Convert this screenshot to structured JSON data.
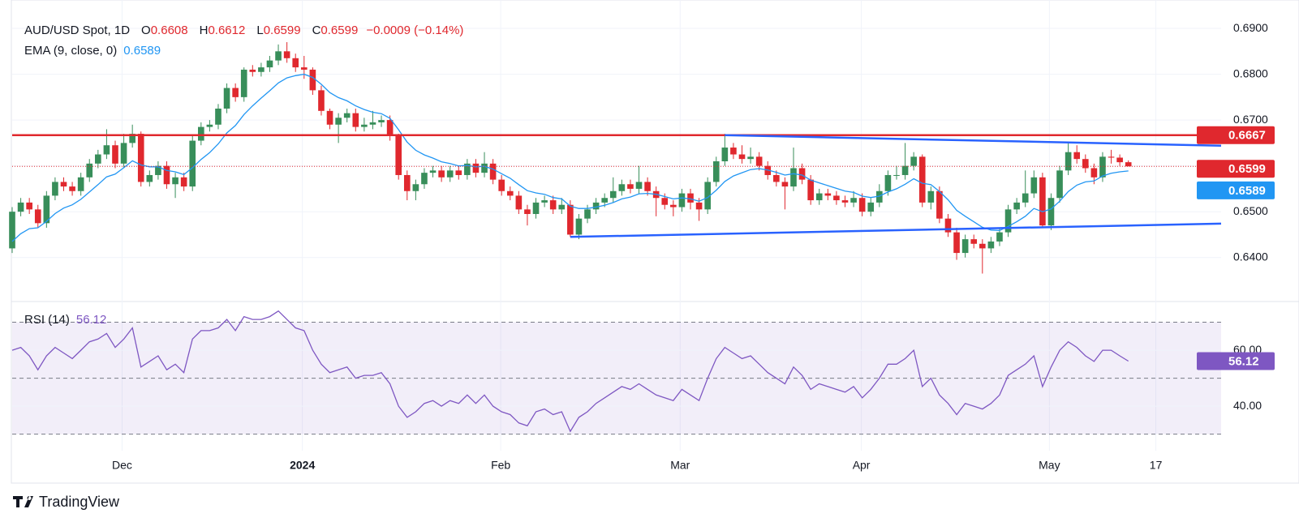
{
  "chart_data": {
    "type": "candlestick",
    "legend_text": {
      "symbol": "AUD/USD Spot, 1D",
      "fields": [
        {
          "label": "O",
          "value": "0.6608"
        },
        {
          "label": "H",
          "value": "0.6612"
        },
        {
          "label": "L",
          "value": "0.6599"
        },
        {
          "label": "C",
          "value": "0.6599"
        }
      ],
      "change": "−0.0009 (−0.14%)"
    },
    "up_color": "#388e5a",
    "down_color": "#e0282e",
    "ohlc": [
      [
        0.642,
        0.651,
        0.641,
        0.65
      ],
      [
        0.65,
        0.653,
        0.649,
        0.652
      ],
      [
        0.652,
        0.653,
        0.6495,
        0.6505
      ],
      [
        0.6505,
        0.6515,
        0.6465,
        0.6475
      ],
      [
        0.6475,
        0.6545,
        0.6465,
        0.6535
      ],
      [
        0.6535,
        0.6575,
        0.6525,
        0.6565
      ],
      [
        0.6565,
        0.6575,
        0.6545,
        0.6555
      ],
      [
        0.6555,
        0.6565,
        0.6535,
        0.6545
      ],
      [
        0.6545,
        0.6585,
        0.6535,
        0.6575
      ],
      [
        0.6575,
        0.6615,
        0.6565,
        0.6605
      ],
      [
        0.6605,
        0.6635,
        0.6595,
        0.6625
      ],
      [
        0.6625,
        0.668,
        0.6615,
        0.6645
      ],
      [
        0.6645,
        0.6655,
        0.6595,
        0.6605
      ],
      [
        0.6605,
        0.667,
        0.6595,
        0.665
      ],
      [
        0.665,
        0.669,
        0.664,
        0.667
      ],
      [
        0.667,
        0.6675,
        0.6555,
        0.6565
      ],
      [
        0.6565,
        0.659,
        0.6555,
        0.658
      ],
      [
        0.658,
        0.661,
        0.657,
        0.66
      ],
      [
        0.66,
        0.661,
        0.655,
        0.656
      ],
      [
        0.656,
        0.6585,
        0.653,
        0.6575
      ],
      [
        0.6575,
        0.6585,
        0.6545,
        0.6555
      ],
      [
        0.6555,
        0.6665,
        0.6545,
        0.6655
      ],
      [
        0.6655,
        0.6695,
        0.6645,
        0.6685
      ],
      [
        0.6685,
        0.67,
        0.6675,
        0.669
      ],
      [
        0.669,
        0.6735,
        0.668,
        0.6725
      ],
      [
        0.6725,
        0.678,
        0.6715,
        0.677
      ],
      [
        0.677,
        0.678,
        0.674,
        0.675
      ],
      [
        0.675,
        0.6815,
        0.674,
        0.681
      ],
      [
        0.681,
        0.682,
        0.6795,
        0.6805
      ],
      [
        0.6805,
        0.6825,
        0.6795,
        0.6815
      ],
      [
        0.6815,
        0.684,
        0.6805,
        0.683
      ],
      [
        0.683,
        0.6865,
        0.682,
        0.685
      ],
      [
        0.685,
        0.687,
        0.6825,
        0.6835
      ],
      [
        0.6835,
        0.6845,
        0.6805,
        0.6815
      ],
      [
        0.6815,
        0.684,
        0.679,
        0.681
      ],
      [
        0.681,
        0.6815,
        0.6755,
        0.6765
      ],
      [
        0.6765,
        0.6775,
        0.671,
        0.672
      ],
      [
        0.672,
        0.6725,
        0.668,
        0.669
      ],
      [
        0.669,
        0.6715,
        0.665,
        0.6705
      ],
      [
        0.6705,
        0.6725,
        0.6695,
        0.6715
      ],
      [
        0.6715,
        0.6725,
        0.6675,
        0.6685
      ],
      [
        0.6685,
        0.6705,
        0.6675,
        0.669
      ],
      [
        0.669,
        0.672,
        0.668,
        0.6695
      ],
      [
        0.6695,
        0.671,
        0.6685,
        0.67
      ],
      [
        0.67,
        0.671,
        0.6655,
        0.6665
      ],
      [
        0.6665,
        0.667,
        0.657,
        0.658
      ],
      [
        0.658,
        0.659,
        0.6525,
        0.6545
      ],
      [
        0.6545,
        0.657,
        0.6525,
        0.656
      ],
      [
        0.656,
        0.6595,
        0.655,
        0.6585
      ],
      [
        0.6585,
        0.66,
        0.6575,
        0.659
      ],
      [
        0.659,
        0.66,
        0.6565,
        0.6575
      ],
      [
        0.6575,
        0.66,
        0.6565,
        0.659
      ],
      [
        0.659,
        0.66,
        0.657,
        0.658
      ],
      [
        0.658,
        0.6615,
        0.657,
        0.6605
      ],
      [
        0.6605,
        0.6615,
        0.6575,
        0.6585
      ],
      [
        0.6585,
        0.663,
        0.6575,
        0.6605
      ],
      [
        0.6605,
        0.6615,
        0.656,
        0.657
      ],
      [
        0.657,
        0.658,
        0.6535,
        0.6545
      ],
      [
        0.6545,
        0.6555,
        0.6525,
        0.6535
      ],
      [
        0.6535,
        0.6545,
        0.6495,
        0.6505
      ],
      [
        0.6505,
        0.6515,
        0.647,
        0.6495
      ],
      [
        0.6495,
        0.653,
        0.6485,
        0.652
      ],
      [
        0.652,
        0.6535,
        0.651,
        0.6525
      ],
      [
        0.6525,
        0.6535,
        0.6495,
        0.6505
      ],
      [
        0.6505,
        0.653,
        0.6495,
        0.6515
      ],
      [
        0.6515,
        0.6525,
        0.6445,
        0.645
      ],
      [
        0.645,
        0.6495,
        0.644,
        0.6485
      ],
      [
        0.6485,
        0.6515,
        0.6475,
        0.6505
      ],
      [
        0.6505,
        0.653,
        0.6495,
        0.652
      ],
      [
        0.652,
        0.654,
        0.651,
        0.653
      ],
      [
        0.653,
        0.6575,
        0.652,
        0.6545
      ],
      [
        0.6545,
        0.657,
        0.6535,
        0.656
      ],
      [
        0.656,
        0.657,
        0.654,
        0.655
      ],
      [
        0.655,
        0.66,
        0.654,
        0.6565
      ],
      [
        0.6565,
        0.6575,
        0.6535,
        0.6545
      ],
      [
        0.6545,
        0.6555,
        0.649,
        0.653
      ],
      [
        0.653,
        0.654,
        0.6505,
        0.6515
      ],
      [
        0.6515,
        0.6525,
        0.649,
        0.651
      ],
      [
        0.651,
        0.655,
        0.65,
        0.654
      ],
      [
        0.654,
        0.655,
        0.6505,
        0.652
      ],
      [
        0.652,
        0.653,
        0.648,
        0.6505
      ],
      [
        0.6505,
        0.6575,
        0.6495,
        0.6565
      ],
      [
        0.6565,
        0.662,
        0.6555,
        0.661
      ],
      [
        0.661,
        0.667,
        0.66,
        0.664
      ],
      [
        0.664,
        0.665,
        0.6615,
        0.6625
      ],
      [
        0.6625,
        0.6645,
        0.6605,
        0.6615
      ],
      [
        0.6615,
        0.664,
        0.6605,
        0.662
      ],
      [
        0.662,
        0.663,
        0.659,
        0.66
      ],
      [
        0.66,
        0.661,
        0.657,
        0.658
      ],
      [
        0.658,
        0.659,
        0.6555,
        0.6565
      ],
      [
        0.6565,
        0.6575,
        0.6505,
        0.6555
      ],
      [
        0.6555,
        0.664,
        0.6545,
        0.6595
      ],
      [
        0.6595,
        0.6605,
        0.656,
        0.657
      ],
      [
        0.657,
        0.658,
        0.6515,
        0.6525
      ],
      [
        0.6525,
        0.655,
        0.6515,
        0.654
      ],
      [
        0.654,
        0.655,
        0.6525,
        0.6535
      ],
      [
        0.6535,
        0.6545,
        0.6515,
        0.6525
      ],
      [
        0.6525,
        0.6535,
        0.651,
        0.652
      ],
      [
        0.652,
        0.6545,
        0.651,
        0.653
      ],
      [
        0.653,
        0.654,
        0.649,
        0.65
      ],
      [
        0.65,
        0.653,
        0.649,
        0.652
      ],
      [
        0.652,
        0.656,
        0.651,
        0.6545
      ],
      [
        0.6545,
        0.659,
        0.6535,
        0.658
      ],
      [
        0.658,
        0.66,
        0.657,
        0.658
      ],
      [
        0.658,
        0.665,
        0.657,
        0.66
      ],
      [
        0.66,
        0.663,
        0.659,
        0.662
      ],
      [
        0.662,
        0.6625,
        0.651,
        0.652
      ],
      [
        0.652,
        0.6555,
        0.6505,
        0.6545
      ],
      [
        0.6545,
        0.6555,
        0.6475,
        0.6485
      ],
      [
        0.6485,
        0.6495,
        0.6445,
        0.6455
      ],
      [
        0.6455,
        0.6465,
        0.6395,
        0.641
      ],
      [
        0.641,
        0.645,
        0.64,
        0.644
      ],
      [
        0.644,
        0.645,
        0.642,
        0.643
      ],
      [
        0.643,
        0.644,
        0.6365,
        0.642
      ],
      [
        0.642,
        0.6445,
        0.641,
        0.6435
      ],
      [
        0.6435,
        0.6465,
        0.6425,
        0.6455
      ],
      [
        0.6455,
        0.6515,
        0.6445,
        0.6505
      ],
      [
        0.6505,
        0.653,
        0.6495,
        0.652
      ],
      [
        0.652,
        0.659,
        0.651,
        0.654
      ],
      [
        0.654,
        0.659,
        0.653,
        0.6575
      ],
      [
        0.6575,
        0.6585,
        0.6465,
        0.647
      ],
      [
        0.647,
        0.654,
        0.646,
        0.653
      ],
      [
        0.653,
        0.66,
        0.652,
        0.659
      ],
      [
        0.659,
        0.665,
        0.658,
        0.663
      ],
      [
        0.663,
        0.6645,
        0.6605,
        0.6615
      ],
      [
        0.6615,
        0.6625,
        0.6585,
        0.6595
      ],
      [
        0.6595,
        0.6605,
        0.656,
        0.6575
      ],
      [
        0.6575,
        0.663,
        0.6565,
        0.662
      ],
      [
        0.662,
        0.6635,
        0.6605,
        0.6618
      ],
      [
        0.6618,
        0.6625,
        0.66,
        0.6608
      ],
      [
        0.6608,
        0.6612,
        0.6599,
        0.6599
      ]
    ],
    "ema": {
      "name": "EMA (9, close, 0)",
      "color": "#2196f3",
      "values": [
        0.6435,
        0.6452,
        0.6463,
        0.6465,
        0.6479,
        0.6496,
        0.6508,
        0.6515,
        0.6527,
        0.6543,
        0.6559,
        0.6576,
        0.6582,
        0.6596,
        0.6611,
        0.6602,
        0.6598,
        0.6598,
        0.659,
        0.6587,
        0.6581,
        0.6596,
        0.6614,
        0.6629,
        0.6648,
        0.6672,
        0.6688,
        0.6712,
        0.6731,
        0.6748,
        0.6764,
        0.6781,
        0.6792,
        0.6797,
        0.68,
        0.6793,
        0.6778,
        0.676,
        0.6749,
        0.6742,
        0.6731,
        0.6723,
        0.6717,
        0.6714,
        0.6704,
        0.6679,
        0.6652,
        0.6634,
        0.6624,
        0.6617,
        0.6609,
        0.6605,
        0.66,
        0.6601,
        0.6598,
        0.6599,
        0.6593,
        0.6583,
        0.6573,
        0.6559,
        0.6546,
        0.6541,
        0.6538,
        0.6531,
        0.6528,
        0.6512,
        0.6507,
        0.6507,
        0.651,
        0.6514,
        0.652,
        0.6528,
        0.6532,
        0.6539,
        0.654,
        0.6538,
        0.6533,
        0.6528,
        0.653,
        0.6528,
        0.6523,
        0.6531,
        0.6547,
        0.6566,
        0.6578,
        0.6585,
        0.6592,
        0.6594,
        0.6591,
        0.6586,
        0.658,
        0.6583,
        0.658,
        0.6569,
        0.6563,
        0.6557,
        0.6551,
        0.6545,
        0.6542,
        0.6534,
        0.6531,
        0.6534,
        0.6543,
        0.655,
        0.656,
        0.6572,
        0.6562,
        0.6559,
        0.6544,
        0.6526,
        0.6503,
        0.649,
        0.6478,
        0.6466,
        0.646,
        0.6459,
        0.6468,
        0.6478,
        0.649,
        0.6507,
        0.65,
        0.6506,
        0.6523,
        0.6544,
        0.6558,
        0.6565,
        0.6567,
        0.6578,
        0.6584,
        0.6587,
        0.6589
      ]
    },
    "hline": {
      "value": 0.6667,
      "label": "0.6667",
      "color": "#e0282e"
    },
    "trendlines": [
      {
        "from": [
          83,
          0.6667
        ],
        "to": [
          140.8,
          0.6644
        ],
        "color": "#2962ff"
      },
      {
        "from": [
          65,
          0.6445
        ],
        "to": [
          140.8,
          0.6474
        ],
        "color": "#2962ff"
      }
    ],
    "xlim": [
      0,
      140.8
    ],
    "xticks": [
      {
        "value": 12.8,
        "label": "Dec"
      },
      {
        "value": 33.8,
        "label": "2024"
      },
      {
        "value": 56.9,
        "label": "Feb"
      },
      {
        "value": 77.8,
        "label": "Mar"
      },
      {
        "value": 98.9,
        "label": "Apr"
      },
      {
        "value": 120.8,
        "label": "May"
      },
      {
        "value": 133.2,
        "label": "17"
      }
    ],
    "ylim": [
      0.6304,
      0.6962
    ],
    "yticks": [
      {
        "value": 0.64,
        "label": "0.6400"
      },
      {
        "value": 0.65,
        "label": "0.6500"
      },
      {
        "value": 0.66,
        "label": "0.6600"
      },
      {
        "value": 0.67,
        "label": "0.6700"
      },
      {
        "value": 0.68,
        "label": "0.6800"
      },
      {
        "value": 0.69,
        "label": "0.6900"
      }
    ],
    "rsi": {
      "name": "RSI (14)",
      "color": "#7e57c2",
      "values": [
        60,
        61,
        58,
        53,
        58,
        61,
        59,
        57,
        60,
        63,
        64,
        66,
        61,
        64,
        68,
        54,
        56,
        58,
        53,
        55,
        52,
        64,
        67,
        67,
        68,
        71,
        67,
        72,
        71,
        71,
        72,
        74,
        71,
        68,
        67,
        60,
        55,
        52,
        53,
        54,
        50,
        51,
        51,
        52,
        48,
        40,
        36,
        38,
        41,
        42,
        40,
        42,
        41,
        44,
        41,
        44,
        40,
        38,
        37,
        34,
        33,
        38,
        39,
        37,
        38,
        31,
        36,
        38,
        41,
        43,
        45,
        47,
        46,
        48,
        46,
        44,
        43,
        42,
        46,
        44,
        42,
        50,
        57,
        61,
        59,
        57,
        58,
        55,
        52,
        50,
        48,
        54,
        51,
        46,
        48,
        47,
        46,
        45,
        47,
        43,
        46,
        50,
        55,
        55,
        57,
        60,
        47,
        50,
        44,
        41,
        37,
        41,
        40,
        39,
        41,
        44,
        51,
        53,
        55,
        58,
        47,
        54,
        60,
        63,
        61,
        58,
        56,
        60,
        60,
        58,
        56.12
      ],
      "ylim": [
        24.1,
        77.4
      ],
      "yticks": [
        {
          "value": 60,
          "label": "60.00"
        },
        {
          "value": 40,
          "label": "40.00"
        }
      ],
      "levels": [
        70,
        50,
        30
      ]
    },
    "branding": "TradingView"
  }
}
